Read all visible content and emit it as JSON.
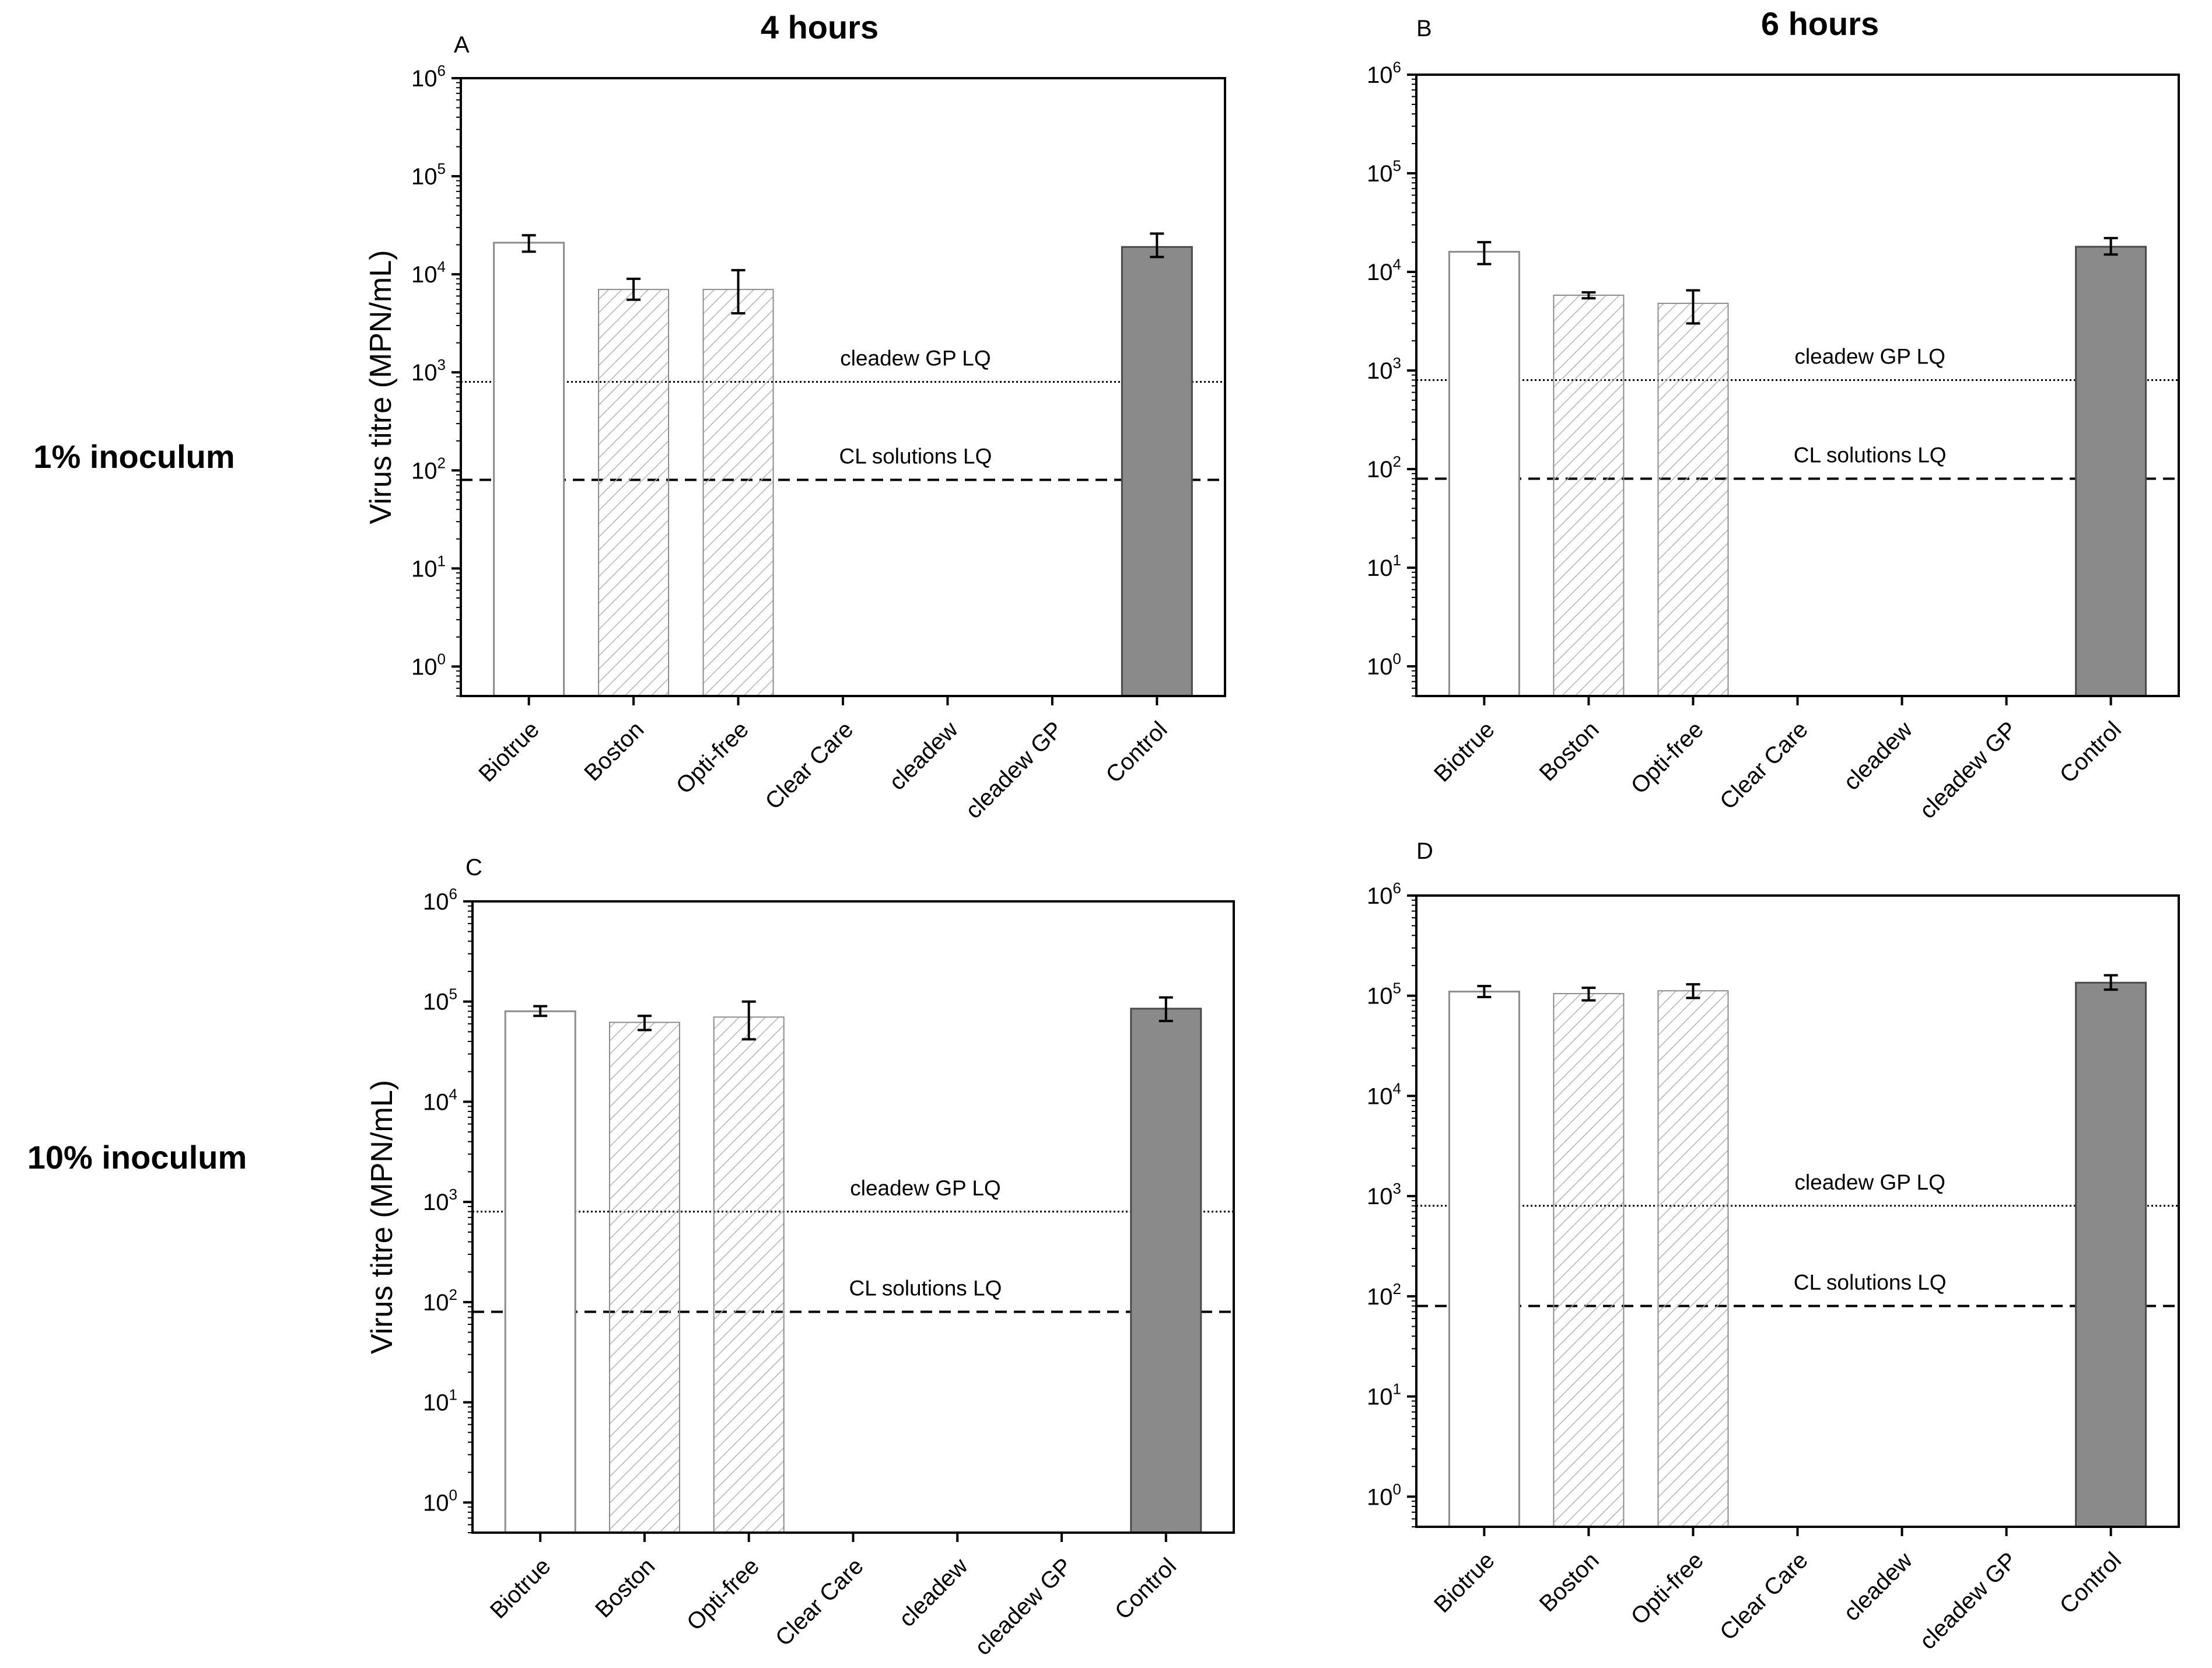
{
  "figure": {
    "col_titles": [
      "4 hours",
      "6 hours"
    ],
    "row_labels": [
      "1% inoculum",
      "10% inoculum"
    ]
  },
  "colors": {
    "axis": "#000000",
    "open_bar_edge": "#8c8c8c",
    "hatch": "#b4b4b4",
    "control_fill": "#8a8a8a",
    "control_edge": "#4a4a4a"
  },
  "chart_data": [
    {
      "panel": "A",
      "type": "bar",
      "categories": [
        "Biotrue",
        "Boston",
        "Opti-free",
        "Clear Care",
        "cleadew",
        "cleadew GP",
        "Control"
      ],
      "values": [
        21000,
        7000,
        7000,
        null,
        null,
        null,
        19000
      ],
      "error_low": [
        17000,
        5500,
        4000,
        null,
        null,
        null,
        15000
      ],
      "error_high": [
        25000,
        9000,
        11000,
        null,
        null,
        null,
        26000
      ],
      "styles": [
        "open",
        "hatched",
        "hatched",
        "none",
        "none",
        "none",
        "filled"
      ],
      "ylabel": "Virus titre (MPN/mL)",
      "ylog": true,
      "ylim": [
        0.5,
        1000000
      ],
      "yticks": [
        1,
        10,
        100,
        1000,
        10000,
        100000,
        1000000
      ],
      "ytick_labels": [
        {
          "base": "10",
          "exp": "0"
        },
        {
          "base": "10",
          "exp": "1"
        },
        {
          "base": "10",
          "exp": "2"
        },
        {
          "base": "10",
          "exp": "3"
        },
        {
          "base": "10",
          "exp": "4"
        },
        {
          "base": "10",
          "exp": "5"
        },
        {
          "base": "10",
          "exp": "6"
        }
      ],
      "reference_lines": [
        {
          "label": "cleadew GP LQ",
          "value": 800,
          "style": "dotted"
        },
        {
          "label": "CL solutions LQ",
          "value": 80,
          "style": "dashed"
        }
      ]
    },
    {
      "panel": "B",
      "type": "bar",
      "categories": [
        "Biotrue",
        "Boston",
        "Opti-free",
        "Clear Care",
        "cleadew",
        "cleadew GP",
        "Control"
      ],
      "values": [
        16000,
        5800,
        4800,
        null,
        null,
        null,
        18000
      ],
      "error_low": [
        12000,
        5400,
        3000,
        null,
        null,
        null,
        15000
      ],
      "error_high": [
        20000,
        6200,
        6500,
        null,
        null,
        null,
        22000
      ],
      "styles": [
        "open",
        "hatched",
        "hatched",
        "none",
        "none",
        "none",
        "filled"
      ],
      "ylabel": "",
      "ylog": true,
      "ylim": [
        0.5,
        1000000
      ],
      "yticks": [
        1,
        10,
        100,
        1000,
        10000,
        100000,
        1000000
      ],
      "ytick_labels": [
        {
          "base": "10",
          "exp": "0"
        },
        {
          "base": "10",
          "exp": "1"
        },
        {
          "base": "10",
          "exp": "2"
        },
        {
          "base": "10",
          "exp": "3"
        },
        {
          "base": "10",
          "exp": "4"
        },
        {
          "base": "10",
          "exp": "5"
        },
        {
          "base": "10",
          "exp": "6"
        }
      ],
      "reference_lines": [
        {
          "label": "cleadew GP LQ",
          "value": 800,
          "style": "dotted"
        },
        {
          "label": "CL solutions LQ",
          "value": 80,
          "style": "dashed"
        }
      ]
    },
    {
      "panel": "C",
      "type": "bar",
      "categories": [
        "Biotrue",
        "Boston",
        "Opti-free",
        "Clear Care",
        "cleadew",
        "cleadew GP",
        "Control"
      ],
      "values": [
        80000,
        62000,
        70000,
        null,
        null,
        null,
        85000
      ],
      "error_low": [
        72000,
        52000,
        42000,
        null,
        null,
        null,
        64000
      ],
      "error_high": [
        90000,
        72000,
        100000,
        null,
        null,
        null,
        110000
      ],
      "styles": [
        "open",
        "hatched",
        "hatched",
        "none",
        "none",
        "none",
        "filled"
      ],
      "ylabel": "Virus titre (MPN/mL)",
      "ylog": true,
      "ylim": [
        0.5,
        1000000
      ],
      "yticks": [
        1,
        10,
        100,
        1000,
        10000,
        100000,
        1000000
      ],
      "ytick_labels": [
        {
          "base": "10",
          "exp": "0"
        },
        {
          "base": "10",
          "exp": "1"
        },
        {
          "base": "10",
          "exp": "2"
        },
        {
          "base": "10",
          "exp": "3"
        },
        {
          "base": "10",
          "exp": "4"
        },
        {
          "base": "10",
          "exp": "5"
        },
        {
          "base": "10",
          "exp": "6"
        }
      ],
      "reference_lines": [
        {
          "label": "cleadew GP LQ",
          "value": 800,
          "style": "dotted"
        },
        {
          "label": "CL solutions LQ",
          "value": 80,
          "style": "dashed"
        }
      ]
    },
    {
      "panel": "D",
      "type": "bar",
      "categories": [
        "Biotrue",
        "Boston",
        "Opti-free",
        "Clear Care",
        "cleadew",
        "cleadew GP",
        "Control"
      ],
      "values": [
        110000,
        105000,
        112000,
        null,
        null,
        null,
        135000
      ],
      "error_low": [
        97000,
        90000,
        95000,
        null,
        null,
        null,
        115000
      ],
      "error_high": [
        125000,
        120000,
        130000,
        null,
        null,
        null,
        160000
      ],
      "styles": [
        "open",
        "hatched",
        "hatched",
        "none",
        "none",
        "none",
        "filled"
      ],
      "ylabel": "",
      "ylog": true,
      "ylim": [
        0.5,
        1000000
      ],
      "yticks": [
        1,
        10,
        100,
        1000,
        10000,
        100000,
        1000000
      ],
      "ytick_labels": [
        {
          "base": "10",
          "exp": "0"
        },
        {
          "base": "10",
          "exp": "1"
        },
        {
          "base": "10",
          "exp": "2"
        },
        {
          "base": "10",
          "exp": "3"
        },
        {
          "base": "10",
          "exp": "4"
        },
        {
          "base": "10",
          "exp": "5"
        },
        {
          "base": "10",
          "exp": "6"
        }
      ],
      "reference_lines": [
        {
          "label": "cleadew GP LQ",
          "value": 800,
          "style": "dotted"
        },
        {
          "label": "CL solutions LQ",
          "value": 80,
          "style": "dashed"
        }
      ]
    }
  ]
}
